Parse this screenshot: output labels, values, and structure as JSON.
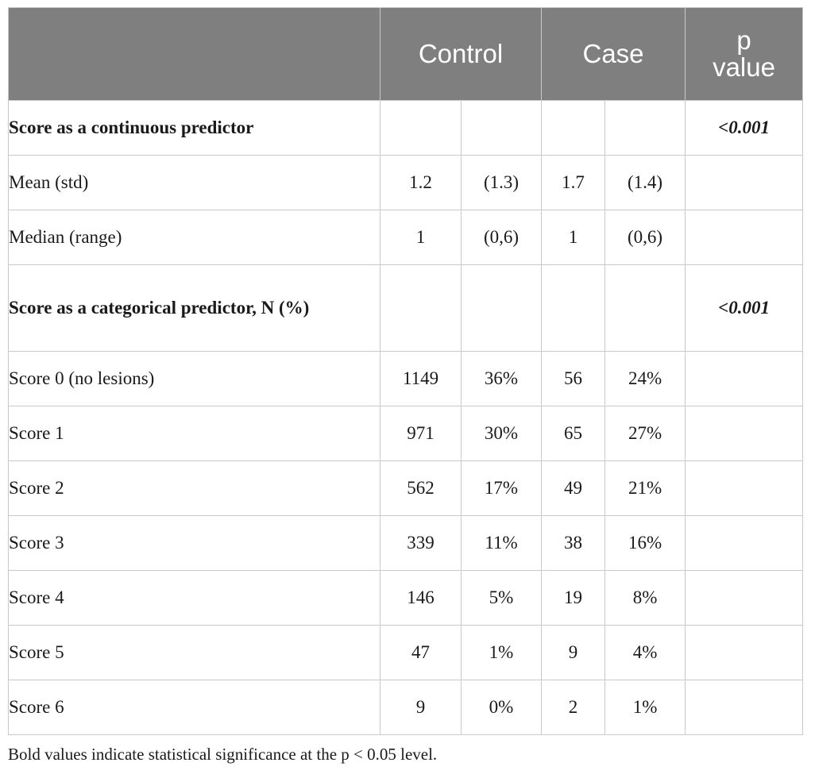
{
  "header": {
    "blank": "",
    "control": "Control",
    "case": "Case",
    "p_value_line1": "p",
    "p_value_line2": "value"
  },
  "sections": [
    {
      "label": "Score as a continuous predictor",
      "p_value": "<0.001",
      "rows": [
        {
          "label": "Mean (std)",
          "control_n": "1.2",
          "control_pct": "(1.3)",
          "case_n": "1.7",
          "case_pct": "(1.4)"
        },
        {
          "label": "Median (range)",
          "control_n": "1",
          "control_pct": "(0,6)",
          "case_n": "1",
          "case_pct": "(0,6)"
        }
      ]
    },
    {
      "label": "Score as a categorical predictor, N (%)",
      "p_value": "<0.001",
      "rows": [
        {
          "label": "Score 0 (no lesions)",
          "control_n": "1149",
          "control_pct": "36%",
          "case_n": "56",
          "case_pct": "24%"
        },
        {
          "label": "Score 1",
          "control_n": "971",
          "control_pct": "30%",
          "case_n": "65",
          "case_pct": "27%"
        },
        {
          "label": "Score 2",
          "control_n": "562",
          "control_pct": "17%",
          "case_n": "49",
          "case_pct": "21%"
        },
        {
          "label": "Score 3",
          "control_n": "339",
          "control_pct": "11%",
          "case_n": "38",
          "case_pct": "16%"
        },
        {
          "label": "Score 4",
          "control_n": "146",
          "control_pct": "5%",
          "case_n": "19",
          "case_pct": "8%"
        },
        {
          "label": "Score 5",
          "control_n": "47",
          "control_pct": "1%",
          "case_n": "9",
          "case_pct": "4%"
        },
        {
          "label": "Score 6",
          "control_n": "9",
          "control_pct": "0%",
          "case_n": "2",
          "case_pct": "1%"
        }
      ]
    }
  ],
  "footnote": "Bold values indicate statistical significance at the p < 0.05 level.",
  "colors": {
    "header_bg": "#7f7f7f",
    "header_text": "#ffffff",
    "border": "#c9c9c9"
  }
}
